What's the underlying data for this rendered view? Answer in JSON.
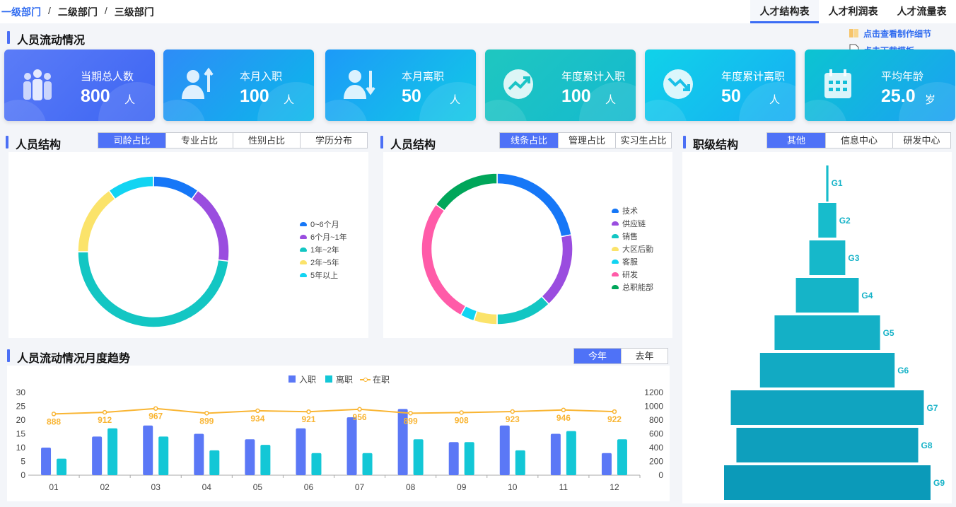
{
  "breadcrumb": {
    "items": [
      "一级部门",
      "二级部门",
      "三级部门"
    ],
    "sep": "/"
  },
  "top_tabs": [
    "人才结构表",
    "人才利润表",
    "人才流量表"
  ],
  "flow_section": {
    "title": "人员流动情况"
  },
  "links": {
    "view": "点击查看制作细节",
    "download": "点击下载模板"
  },
  "cards": [
    {
      "label": "当期总人数",
      "value": "800",
      "unit": "人",
      "icon": "people-group-icon",
      "from": "#5b7cf7",
      "to": "#3d65f3"
    },
    {
      "label": "本月入职",
      "value": "100",
      "unit": "人",
      "icon": "person-up-icon",
      "from": "#2e8cf7",
      "to": "#0ab8ea"
    },
    {
      "label": "本月离职",
      "value": "50",
      "unit": "人",
      "icon": "person-down-icon",
      "from": "#1d9af8",
      "to": "#11c9e6"
    },
    {
      "label": "年度累计入职",
      "value": "100",
      "unit": "人",
      "icon": "trend-up-icon",
      "from": "#1fc7c0",
      "to": "#14b9cf"
    },
    {
      "label": "年度累计离职",
      "value": "50",
      "unit": "人",
      "icon": "trend-down-icon",
      "from": "#10d2e9",
      "to": "#17aef3"
    },
    {
      "label": "平均年龄",
      "value": "25.0",
      "unit": "岁",
      "icon": "calendar-icon",
      "from": "#0cc4d1",
      "to": "#1ba1f3"
    }
  ],
  "structure1": {
    "title": "人员结构",
    "tabs": [
      "司龄占比",
      "专业占比",
      "性别占比",
      "学历分布"
    ]
  },
  "structure2": {
    "title": "人员结构",
    "tabs": [
      "线条占比",
      "管理占比",
      "实习生占比"
    ]
  },
  "level": {
    "title": "职级结构",
    "tabs": [
      "其他",
      "信息中心",
      "研发中心"
    ]
  },
  "trend": {
    "title": "人员流动情况月度趋势",
    "tabs": [
      "今年",
      "去年"
    ]
  },
  "chart_data": [
    {
      "type": "pie",
      "name": "司龄占比",
      "donut": true,
      "colors": [
        "#1677f7",
        "#9a4ddf",
        "#13c6c3",
        "#fbe36a",
        "#12d4f2"
      ],
      "categories": [
        "0~6个月",
        "6个月~1年",
        "1年~2年",
        "2年~5年",
        "5年以上"
      ],
      "values": [
        10,
        17,
        48,
        15,
        10
      ]
    },
    {
      "type": "pie",
      "name": "线条占比",
      "donut": true,
      "colors": [
        "#1677f7",
        "#9a4ddf",
        "#13c6c3",
        "#fbe36a",
        "#12d4f2",
        "#ff5ba8",
        "#00a65a"
      ],
      "categories": [
        "技术",
        "供应链",
        "销售",
        "大区后勤",
        "客服",
        "研发",
        "总职能部"
      ],
      "values": [
        22,
        16,
        12,
        5,
        3,
        27,
        15
      ]
    },
    {
      "type": "bar",
      "name": "职级结构",
      "categories": [
        "G1",
        "G2",
        "G3",
        "G4",
        "G5",
        "G6",
        "G7",
        "G8",
        "G9"
      ],
      "values": [
        1,
        8,
        16,
        28,
        47,
        60,
        86,
        81,
        92
      ],
      "color": "#16b5c9"
    },
    {
      "type": "bar",
      "name": "人员流动情况月度趋势",
      "categories": [
        "01",
        "02",
        "03",
        "04",
        "05",
        "06",
        "07",
        "08",
        "09",
        "10",
        "11",
        "12"
      ],
      "series": [
        {
          "name": "入职",
          "type": "bar",
          "axis": "left",
          "color": "#5b78f6",
          "values": [
            10,
            14,
            18,
            15,
            13,
            17,
            21,
            24,
            12,
            18,
            15,
            8
          ]
        },
        {
          "name": "离职",
          "type": "bar",
          "axis": "left",
          "color": "#13c7d6",
          "values": [
            6,
            17,
            14,
            9,
            11,
            8,
            8,
            13,
            12,
            9,
            16,
            13
          ]
        },
        {
          "name": "在职",
          "type": "line",
          "axis": "right",
          "color": "#f9b533",
          "values": [
            888,
            912,
            967,
            899,
            934,
            921,
            956,
            899,
            908,
            923,
            946,
            922
          ]
        }
      ],
      "ylim": [
        0,
        30
      ],
      "yticks": [
        0,
        5,
        10,
        15,
        20,
        25,
        30
      ],
      "y2lim": [
        0,
        1200
      ],
      "y2ticks": [
        0,
        200,
        400,
        600,
        800,
        1000,
        1200
      ]
    }
  ]
}
